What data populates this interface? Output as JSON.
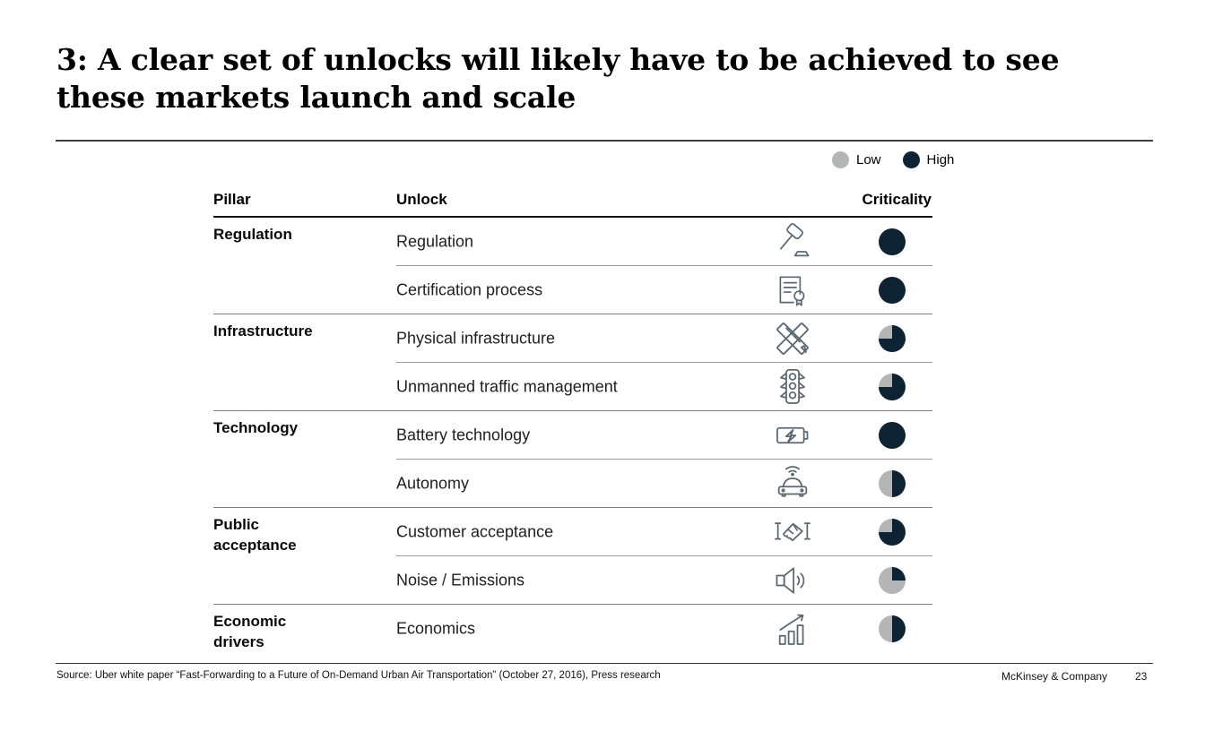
{
  "slide": {
    "title": "3: A clear set of unlocks will likely have to be achieved to see these markets launch and scale",
    "legend": {
      "low_label": "Low",
      "high_label": "High"
    },
    "colors": {
      "high": "#0d2333",
      "low": "#b4b5b7",
      "icon_stroke": "#5b6872"
    },
    "table": {
      "headers": {
        "pillar": "Pillar",
        "unlock": "Unlock",
        "criticality": "Criticality"
      },
      "rows": [
        {
          "pillar": "Regulation",
          "unlock": "Regulation",
          "icon": "gavel-icon",
          "criticality_pct": 100
        },
        {
          "pillar": "",
          "unlock": "Certification process",
          "icon": "certificate-icon",
          "criticality_pct": 100
        },
        {
          "pillar": "Infrastructure",
          "unlock": "Physical infrastructure",
          "icon": "rulers-icon",
          "criticality_pct": 75
        },
        {
          "pillar": "",
          "unlock": "Unmanned traffic management",
          "icon": "traffic-light-icon",
          "criticality_pct": 75
        },
        {
          "pillar": "Technology",
          "unlock": "Battery technology",
          "icon": "battery-icon",
          "criticality_pct": 100
        },
        {
          "pillar": "",
          "unlock": "Autonomy",
          "icon": "autonomous-car-icon",
          "criticality_pct": 50
        },
        {
          "pillar": "Public acceptance",
          "unlock": "Customer acceptance",
          "icon": "handshake-icon",
          "criticality_pct": 75
        },
        {
          "pillar": "",
          "unlock": "Noise / Emissions",
          "icon": "speaker-icon",
          "criticality_pct": 25
        },
        {
          "pillar": "Economic drivers",
          "unlock": "Economics",
          "icon": "chart-up-icon",
          "criticality_pct": 50
        }
      ]
    },
    "footer": {
      "source": "Source: Uber white paper “Fast-Forwarding to a Future of On-Demand Urban Air Transportation” (October 27, 2016), Press research",
      "brand": "McKinsey & Company",
      "page_number": "23"
    }
  }
}
